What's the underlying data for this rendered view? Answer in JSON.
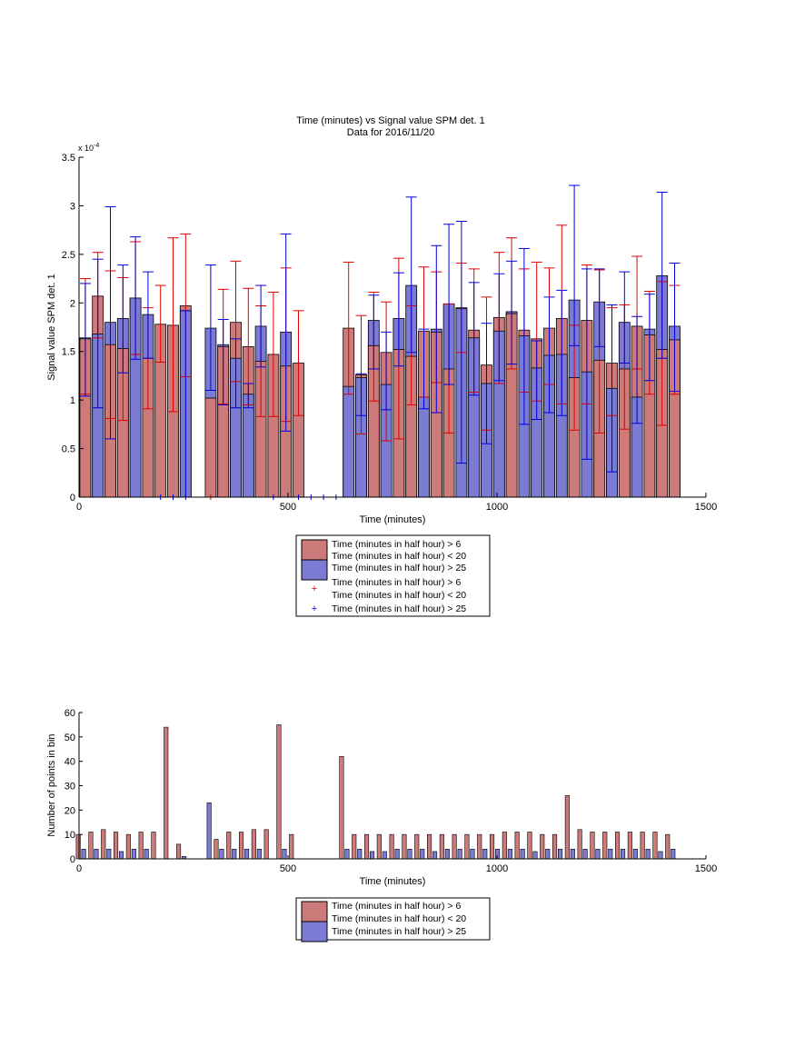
{
  "colors": {
    "red_fill": "#cc7a7a",
    "blue_fill": "#7b7bd3",
    "red_line": "#e00000",
    "blue_line": "#0000dd"
  },
  "chart_data": [
    {
      "type": "bar",
      "title": "Time (minutes) vs Signal value SPM det. 1",
      "subtitle": "Data for 2016/11/20",
      "xlabel": "Time (minutes)",
      "ylabel": "Signal value SPM det. 1",
      "exponent_label": "x 10",
      "exponent_power": "-4",
      "xlim": [
        0,
        1500
      ],
      "ylim": [
        0,
        3.5
      ],
      "y_scale_factor": 0.0001,
      "x_ticks": [
        "0",
        "500",
        "1000",
        "1500"
      ],
      "y_ticks": [
        "0",
        "0.5",
        "1",
        "1.5",
        "2",
        "2.5",
        "3",
        "3.5"
      ],
      "legend_position": "below",
      "legend": [
        "Time (minutes in half hour) > 6",
        "Time (minutes in half hour) < 20",
        "Time (minutes in half hour) > 25",
        "Time (minutes in half hour) > 6",
        "Time (minutes in half hour) < 20",
        "Time (minutes in half hour) > 25"
      ],
      "series": [
        {
          "x": [
            15,
            45,
            75,
            105,
            135,
            165,
            195,
            225,
            255,
            315,
            345,
            375,
            405,
            435,
            465,
            495,
            525,
            645,
            675,
            705,
            735,
            765,
            795,
            825,
            855,
            885,
            915,
            945,
            975,
            1005,
            1035,
            1065,
            1095,
            1125,
            1155,
            1185,
            1215,
            1245,
            1275,
            1305,
            1335,
            1365,
            1395,
            1425
          ],
          "values": [
            1.63,
            2.07,
            1.57,
            1.53,
            2.05,
            1.43,
            1.78,
            1.77,
            1.97,
            1.02,
            1.55,
            1.8,
            1.55,
            1.4,
            1.47,
            1.35,
            1.38,
            1.74,
            1.26,
            1.56,
            1.49,
            1.52,
            1.45,
            1.71,
            1.7,
            1.32,
            1.95,
            1.72,
            1.36,
            1.85,
            1.89,
            1.72,
            1.63,
            1.74,
            1.84,
            1.23,
            1.82,
            1.41,
            1.38,
            1.32,
            1.76,
            1.67,
            1.52,
            1.62
          ],
          "err_low": [
            1.06,
            1.64,
            0.81,
            0.79,
            1.47,
            0.91,
            1.39,
            0.88,
            1.24,
            0.0,
            0.96,
            1.19,
            0.95,
            0.83,
            0.83,
            0.78,
            0.84,
            1.06,
            0.65,
            0.99,
            0.58,
            0.6,
            0.95,
            1.03,
            1.18,
            0.66,
            1.49,
            1.08,
            0.69,
            1.17,
            1.32,
            1.08,
            0.99,
            1.16,
            0.96,
            0.69,
            0.96,
            0.66,
            0.84,
            0.7,
            1.32,
            1.06,
            0.74,
            1.06
          ],
          "err_high": [
            2.25,
            2.52,
            2.33,
            2.26,
            2.63,
            1.95,
            2.18,
            2.67,
            2.71,
            0.0,
            2.14,
            2.43,
            2.15,
            1.97,
            2.11,
            2.36,
            1.92,
            2.42,
            1.87,
            2.11,
            2.01,
            2.46,
            1.97,
            2.37,
            2.32,
            1.99,
            2.41,
            2.35,
            2.06,
            2.52,
            2.67,
            2.35,
            2.42,
            2.36,
            2.8,
            1.77,
            2.39,
            2.34,
            1.95,
            1.98,
            2.48,
            2.12,
            2.22,
            2.18
          ]
        },
        {
          "x": [
            15,
            45,
            75,
            105,
            135,
            165,
            195,
            225,
            255,
            315,
            345,
            375,
            405,
            435,
            465,
            495,
            525,
            645,
            675,
            705,
            735,
            765,
            795,
            825,
            855,
            885,
            915,
            945,
            975,
            1005,
            1035,
            1065,
            1095,
            1125,
            1155,
            1185,
            1215,
            1245,
            1275,
            1305,
            1335,
            1365,
            1395,
            1425
          ],
          "values": [
            1.64,
            1.68,
            1.8,
            1.84,
            2.05,
            1.88,
            0,
            0,
            1.92,
            1.74,
            1.57,
            1.43,
            1.06,
            1.76,
            0,
            1.7,
            0,
            1.14,
            1.23,
            1.82,
            1.16,
            1.84,
            2.18,
            1.03,
            1.73,
            1.99,
            1.94,
            1.64,
            1.17,
            1.71,
            1.91,
            1.66,
            1.33,
            1.46,
            1.47,
            2.03,
            1.29,
            2.01,
            1.12,
            1.8,
            1.03,
            1.73,
            2.28,
            1.76
          ],
          "err_low": [
            1.04,
            0.92,
            0.6,
            1.28,
            1.42,
            1.43,
            0,
            0,
            0,
            1.1,
            0.95,
            0.92,
            0.92,
            1.34,
            0,
            0.68,
            0,
            0,
            0.84,
            1.32,
            0.9,
            1.35,
            1.49,
            0.91,
            0.87,
            1.16,
            0.35,
            1.05,
            0.55,
            1.2,
            1.37,
            0.75,
            0.8,
            0.87,
            0.84,
            1.56,
            0.39,
            1.55,
            0.26,
            1.38,
            0.76,
            1.2,
            1.43,
            1.09
          ],
          "err_high": [
            2.2,
            2.45,
            2.99,
            2.39,
            2.68,
            2.32,
            0,
            0,
            1.92,
            2.39,
            1.83,
            1.63,
            1.17,
            2.18,
            0,
            2.71,
            0,
            0,
            1.27,
            2.08,
            1.7,
            2.31,
            3.09,
            1.73,
            2.59,
            2.81,
            2.84,
            2.21,
            1.79,
            2.3,
            2.43,
            2.56,
            1.61,
            2.06,
            2.13,
            3.21,
            2.35,
            2.35,
            1.98,
            2.32,
            1.86,
            2.09,
            3.14,
            2.41
          ]
        }
      ],
      "zero_markers": {
        "x": [
          195,
          225,
          255,
          315,
          465,
          525,
          555,
          585,
          615
        ],
        "series": [
          "blue",
          "blue",
          "blue",
          "red",
          "blue",
          "blue",
          "blue",
          "blue",
          "blue"
        ]
      }
    },
    {
      "type": "bar",
      "xlabel": "Time (minutes)",
      "ylabel": "Number of points in bin",
      "xlim": [
        0,
        1500
      ],
      "ylim": [
        0,
        60
      ],
      "x_ticks": [
        "0",
        "500",
        "1000",
        "1500"
      ],
      "y_ticks": [
        "0",
        "10",
        "20",
        "30",
        "40",
        "50",
        "60"
      ],
      "legend_position": "below",
      "legend": [
        "Time (minutes in half hour) > 6",
        "Time (minutes in half hour) < 20",
        "Time (minutes in half hour) > 25"
      ],
      "x": [
        15,
        45,
        75,
        105,
        135,
        165,
        195,
        225,
        255,
        285,
        315,
        345,
        375,
        405,
        435,
        465,
        495,
        525,
        555,
        585,
        615,
        645,
        675,
        705,
        735,
        765,
        795,
        825,
        855,
        885,
        915,
        945,
        975,
        1005,
        1035,
        1065,
        1095,
        1125,
        1155,
        1185,
        1215,
        1245,
        1275,
        1305,
        1335,
        1365,
        1395,
        1425
      ],
      "series": [
        {
          "values": [
            10,
            11,
            12,
            11,
            10,
            11,
            11,
            54,
            6,
            0,
            0,
            8,
            11,
            11,
            12,
            12,
            55,
            10,
            0,
            0,
            0,
            42,
            10,
            10,
            10,
            10,
            10,
            10,
            10,
            10,
            10,
            10,
            10,
            10,
            11,
            11,
            11,
            10,
            10,
            26,
            12,
            11,
            11,
            11,
            11,
            11,
            11,
            10
          ]
        },
        {
          "values": [
            4,
            4,
            4,
            3,
            4,
            4,
            0,
            0,
            1,
            0,
            23,
            4,
            4,
            4,
            4,
            0,
            4,
            0,
            0,
            0,
            0,
            4,
            4,
            3,
            3,
            4,
            4,
            4,
            3,
            4,
            4,
            4,
            4,
            4,
            4,
            4,
            3,
            4,
            4,
            4,
            4,
            4,
            4,
            4,
            4,
            4,
            3,
            4
          ]
        }
      ]
    }
  ]
}
